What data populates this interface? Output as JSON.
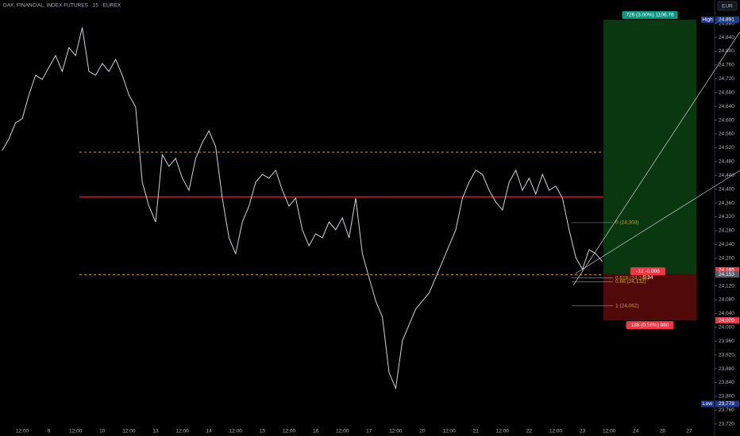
{
  "chart_data": {
    "type": "line",
    "title": "DAX, FINANCIAL, INDEX FUTURES · 15 · EUREX",
    "currency": "EUR",
    "categories": [
      null,
      null,
      null,
      "12:00",
      null,
      null,
      null,
      "9",
      null,
      null,
      null,
      "12:00",
      null,
      null,
      null,
      "10",
      null,
      null,
      null,
      "12:00",
      null,
      null,
      null,
      "13",
      null,
      null,
      null,
      "12:00",
      null,
      null,
      null,
      "14",
      null,
      null,
      null,
      "12:00",
      null,
      null,
      null,
      "15",
      null,
      null,
      null,
      "12:00",
      null,
      null,
      null,
      "16",
      null,
      null,
      null,
      "12:00",
      null,
      null,
      null,
      "17",
      null,
      null,
      null,
      "12:00",
      null,
      null,
      null,
      "20",
      null,
      null,
      null,
      "12:00",
      null,
      null,
      null,
      "21",
      null,
      null,
      null,
      "12:00",
      null,
      null,
      null,
      "22",
      null,
      null,
      null,
      "12:00",
      null,
      null,
      null,
      "23",
      null,
      null,
      null,
      "12:00",
      null,
      null,
      null,
      "24",
      null,
      null,
      null,
      "26",
      null,
      null,
      null,
      "27"
    ],
    "series": [
      {
        "color": "#d1d4dc",
        "values": [
          24512,
          24546,
          24592,
          24604,
          24673,
          24730,
          24718,
          24753,
          24787,
          24741,
          24810,
          24787,
          24868,
          24741,
          24730,
          24764,
          24741,
          24776,
          24730,
          24673,
          24638,
          24420,
          24351,
          24305,
          24500,
          24466,
          24489,
          24432,
          24397,
          24489,
          24535,
          24569,
          24523,
          24374,
          24259,
          24213,
          24305,
          24351,
          24420,
          24443,
          24432,
          24455,
          24397,
          24351,
          24374,
          24282,
          24236,
          24271,
          24259,
          24305,
          24282,
          24317,
          24259,
          24374,
          24213,
          24144,
          24076,
          24030,
          23869,
          23823,
          23961,
          24007,
          24053,
          24076,
          24099,
          24144,
          24190,
          24236,
          24282,
          24374,
          24420,
          24455,
          24443,
          24397,
          24363,
          24340,
          24420,
          24455,
          24397,
          24432,
          24386,
          24443,
          24397,
          24409,
          24374,
          24282,
          24202,
          24168,
          24225,
          24213,
          24190,
          null,
          null,
          null,
          null,
          null,
          null,
          null,
          null,
          null,
          null,
          null,
          null,
          null
        ]
      }
    ],
    "ylim": [
      23708,
      24948
    ],
    "yticks": [
      {
        "value": 24880,
        "label": "24,880"
      },
      {
        "value": 24840,
        "label": "24,840"
      },
      {
        "value": 24800,
        "label": "24,800"
      },
      {
        "value": 24760,
        "label": "24,760"
      },
      {
        "value": 24720,
        "label": "24,720"
      },
      {
        "value": 24680,
        "label": "24,680"
      },
      {
        "value": 24640,
        "label": "24,640"
      },
      {
        "value": 24600,
        "label": "24,600"
      },
      {
        "value": 24560,
        "label": "24,560"
      },
      {
        "value": 24520,
        "label": "24,520"
      },
      {
        "value": 24480,
        "label": "24,480"
      },
      {
        "value": 24440,
        "label": "24,440"
      },
      {
        "value": 24400,
        "label": "24,400"
      },
      {
        "value": 24360,
        "label": "24,360"
      },
      {
        "value": 24320,
        "label": "24,320"
      },
      {
        "value": 24280,
        "label": "24,280"
      },
      {
        "value": 24240,
        "label": "24,240"
      },
      {
        "value": 24200,
        "label": "24,200"
      },
      {
        "value": 24160,
        "label": "24,160"
      },
      {
        "value": 24120,
        "label": "24,120"
      },
      {
        "value": 24080,
        "label": "24,080"
      },
      {
        "value": 24040,
        "label": "24,040"
      },
      {
        "value": 24000,
        "label": "24,000"
      },
      {
        "value": 23960,
        "label": "23,960"
      },
      {
        "value": 23920,
        "label": "23,920"
      },
      {
        "value": 23880,
        "label": "23,880"
      },
      {
        "value": 23840,
        "label": "23,840"
      },
      {
        "value": 23800,
        "label": "23,800"
      },
      {
        "value": 23760,
        "label": "23,760"
      },
      {
        "value": 23720,
        "label": "23,720"
      }
    ],
    "levels": [
      {
        "value": 24507,
        "color": "#c9a227",
        "style": "dashed"
      },
      {
        "value": 24378,
        "color": "#f23645",
        "style": "solid"
      },
      {
        "value": 24152,
        "color": "#c9a227",
        "style": "dashed"
      }
    ],
    "position": {
      "entry": 24153,
      "target": 24891,
      "stop": 24020,
      "target_label": "726 (3.00%) 1106.76",
      "stop_label": "136 (0.56%) 980",
      "pnl_label": "-12 -0.006",
      "pnl_sub_label": "5.34"
    },
    "fib": [
      {
        "value": 24303,
        "label": "0 (24,303)"
      },
      {
        "value": 24143,
        "label": "0.618 (24,143)"
      },
      {
        "value": 24132,
        "label": "0.66 (24,132)"
      },
      {
        "value": 24062,
        "label": "1 (24,062)"
      }
    ],
    "price_labels": [
      {
        "value": 24891,
        "label": "24,891",
        "color": "#089981"
      },
      {
        "value": 24891,
        "label": "24,891",
        "color": "#1e3a8a",
        "tag": "High"
      },
      {
        "value": 24165,
        "label": "24,165",
        "color": "#f23645"
      },
      {
        "value": 24153,
        "label": "24,153",
        "color": "#555a66"
      },
      {
        "value": 24020,
        "label": "24,020",
        "color": "#f23645"
      },
      {
        "value": 23778,
        "label": "23,778",
        "color": "#1e3a8a",
        "tag": "Low"
      }
    ]
  }
}
